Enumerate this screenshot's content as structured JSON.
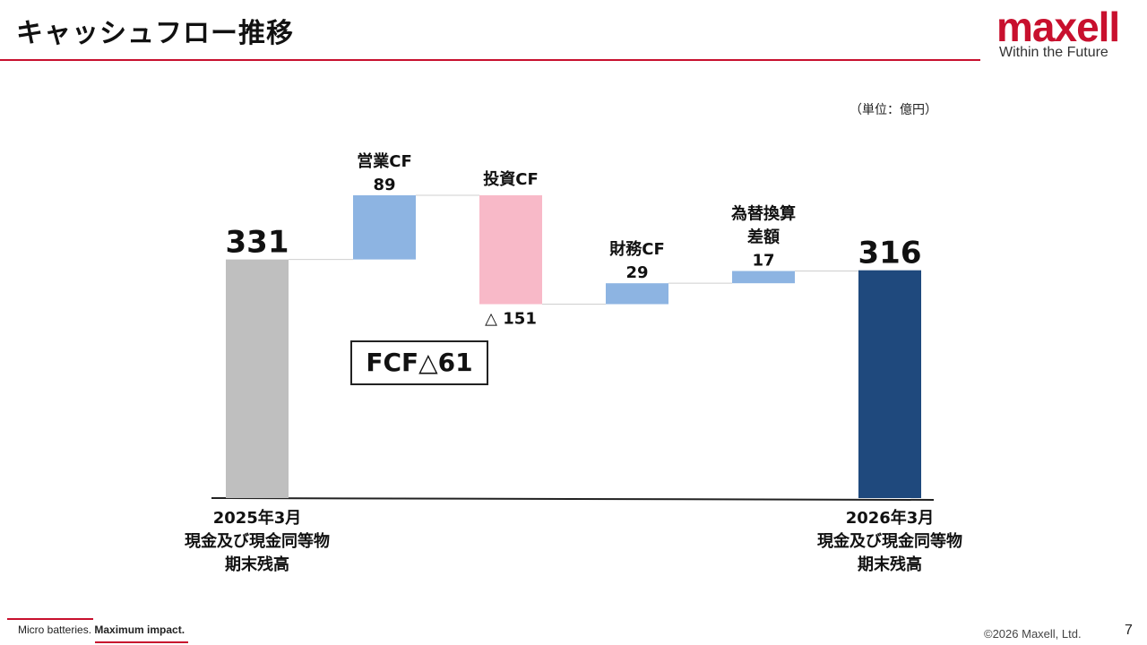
{
  "header": {
    "title": "キャッシュフロー推移",
    "logo_word": "maxell",
    "logo_tagline": "Within the Future"
  },
  "unit_label": "（単位：億円）",
  "fcf_label": "FCF△61",
  "footer": {
    "tagline_regular": "Micro batteries. ",
    "tagline_bold": "Maximum impact.",
    "copyright": "©2026 Maxell, Ltd.",
    "page_number": "7"
  },
  "chart_data": {
    "type": "bar",
    "subtype": "waterfall",
    "steps": [
      {
        "label": "2025年3月\n現金及び現金同等物\n期末残高",
        "value_label": "331",
        "start": 0,
        "end": 331,
        "kind": "total",
        "color": "#bfbfbf"
      },
      {
        "label": "営業CF",
        "value_label": "89",
        "start": 331,
        "end": 420,
        "kind": "increase",
        "color": "#8db4e2"
      },
      {
        "label": "投資CF",
        "value_label": "△ 151",
        "start": 420,
        "end": 269,
        "kind": "decrease",
        "color": "#f8b9c8"
      },
      {
        "label": "財務CF",
        "value_label": "29",
        "start": 269,
        "end": 298,
        "kind": "increase",
        "color": "#8db4e2"
      },
      {
        "label": "為替換算\n差額",
        "value_label": "17",
        "start": 298,
        "end": 315,
        "kind": "increase",
        "color": "#8db4e2"
      },
      {
        "label": "2026年3月\n現金及び現金同等物\n期末残高",
        "value_label": "316",
        "start": 0,
        "end": 316,
        "kind": "total",
        "color": "#1f497d"
      }
    ],
    "ylim": [
      0,
      420
    ],
    "grid": false,
    "legend": "none"
  }
}
